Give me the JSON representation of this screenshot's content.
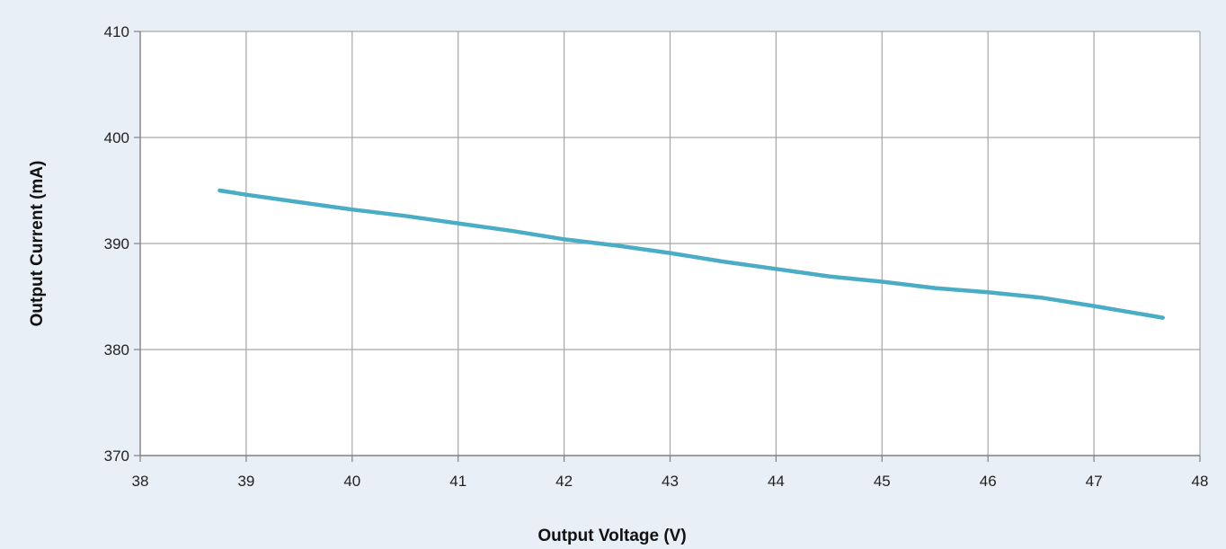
{
  "chart_data": {
    "type": "line",
    "title": "",
    "xlabel": "Output Voltage (V)",
    "ylabel": "Output Current (mA)",
    "xlim": [
      38,
      48
    ],
    "ylim": [
      370,
      410
    ],
    "x_ticks": [
      "38",
      "39",
      "40",
      "41",
      "42",
      "43",
      "44",
      "45",
      "46",
      "47",
      "48"
    ],
    "y_ticks": [
      "410",
      "400",
      "390",
      "380",
      "370"
    ],
    "grid": true,
    "legend": "none",
    "series": [
      {
        "color": "#4bacc6",
        "x": [
          38.75,
          39.0,
          39.5,
          40.0,
          40.5,
          41.0,
          41.5,
          42.0,
          42.5,
          43.0,
          43.5,
          44.0,
          44.5,
          45.0,
          45.5,
          46.0,
          46.5,
          47.0,
          47.65
        ],
        "y": [
          395.0,
          394.6,
          393.9,
          393.2,
          392.6,
          391.9,
          391.2,
          390.4,
          389.8,
          389.1,
          388.3,
          387.6,
          386.9,
          386.4,
          385.8,
          385.4,
          384.9,
          384.1,
          383.0
        ]
      }
    ]
  }
}
